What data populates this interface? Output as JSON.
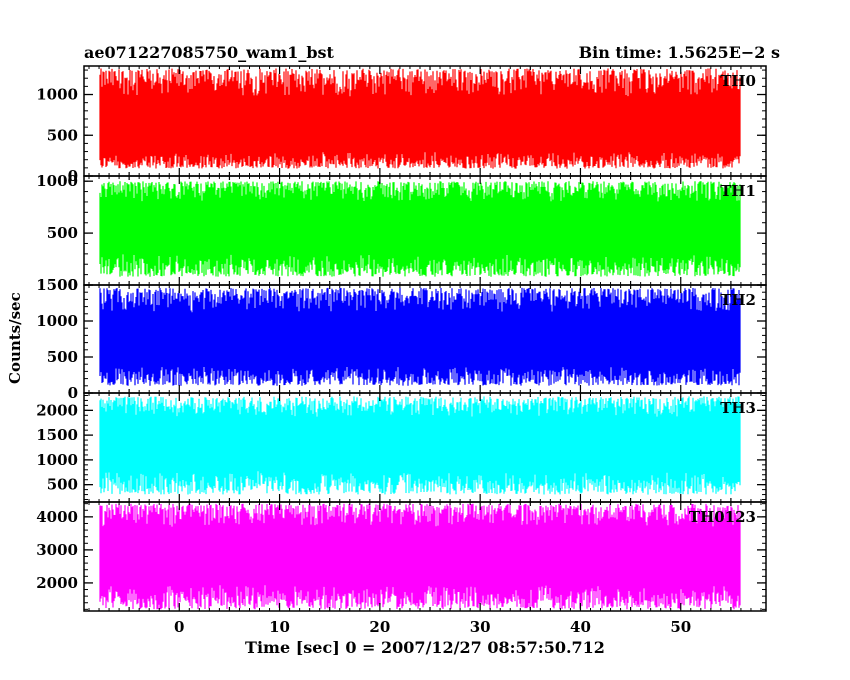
{
  "chart_data": {
    "type": "line",
    "title_left": "ae071227085750_wam1_bst",
    "title_right": "Bin time: 1.5625E−2 s",
    "xlabel": "Time [sec] 0 = 2007/12/27 08:57:50.712",
    "ylabel": "Counts/sec",
    "xlim": [
      -9.5,
      58.5
    ],
    "data_xrange": [
      -8,
      56
    ],
    "x_ticks": [
      0,
      10,
      20,
      30,
      40,
      50
    ],
    "panels": [
      {
        "label": "TH0",
        "color": "#ff0000",
        "ylim": [
          0,
          1350
        ],
        "ticks": [
          0,
          500,
          1000
        ],
        "mean": 550,
        "low": 90,
        "high": 1320
      },
      {
        "label": "TH1",
        "color": "#00ff00",
        "ylim": [
          0,
          1050
        ],
        "ticks": [
          0,
          500,
          1000
        ],
        "mean": 560,
        "low": 80,
        "high": 1000
      },
      {
        "label": "TH2",
        "color": "#0000ff",
        "ylim": [
          0,
          1500
        ],
        "ticks": [
          0,
          500,
          1000,
          1500
        ],
        "mean": 700,
        "low": 100,
        "high": 1460
      },
      {
        "label": "TH3",
        "color": "#00ffff",
        "ylim": [
          150,
          2350
        ],
        "ticks": [
          500,
          1000,
          1500,
          2000
        ],
        "mean": 1350,
        "low": 300,
        "high": 2280
      },
      {
        "label": "TH0123",
        "color": "#ff00ff",
        "ylim": [
          1150,
          4450
        ],
        "ticks": [
          2000,
          3000,
          4000
        ],
        "mean": 2850,
        "low": 1200,
        "high": 4400
      }
    ]
  }
}
